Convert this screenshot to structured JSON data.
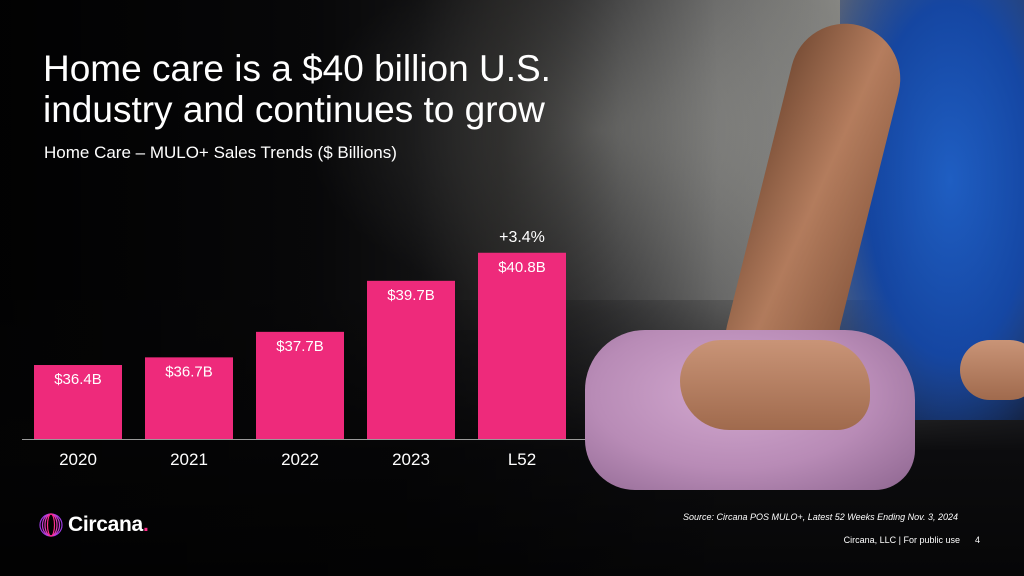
{
  "slide": {
    "title": "Home care is a $40 billion U.S. industry and continues to grow",
    "subtitle": "Home Care – MULO+ Sales Trends ($ Billions)",
    "source": "Source: Circana POS MULO+, Latest 52 Weeks Ending Nov. 3, 2024",
    "footer": "Circana, LLC | For public use",
    "page_number": "4",
    "brand": {
      "name": "Circana",
      "dot": ".",
      "logo_icon": "circana-swirl-icon"
    }
  },
  "colors": {
    "bar": "#ee2a7b",
    "text": "#ffffff",
    "brand_accent": "#ff2d8a"
  },
  "chart_data": {
    "type": "bar",
    "categories": [
      "2020",
      "2021",
      "2022",
      "2023",
      "L52"
    ],
    "values": [
      36.4,
      36.7,
      37.7,
      39.7,
      40.8
    ],
    "data_labels": [
      "$36.4B",
      "$36.7B",
      "$37.7B",
      "$39.7B",
      "$40.8B"
    ],
    "annotation": {
      "category": "L52",
      "text": "+3.4%"
    },
    "title": "",
    "xlabel": "",
    "ylabel": "",
    "ylim": [
      33.5,
      41.3
    ],
    "grid": false,
    "legend": "none"
  }
}
